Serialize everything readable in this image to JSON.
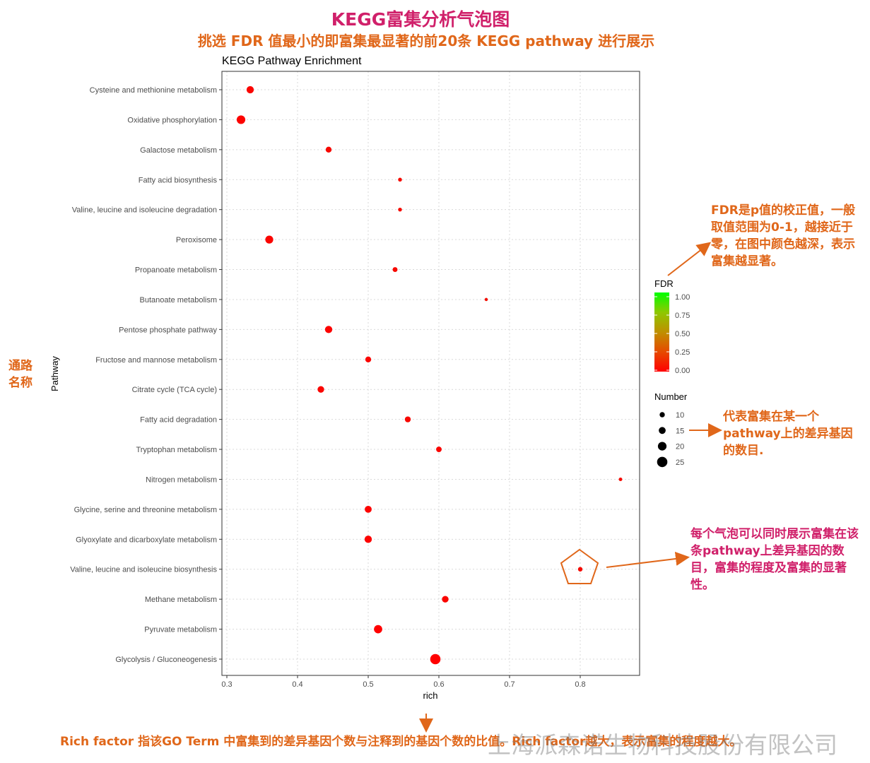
{
  "header": {
    "title": "KEGG富集分析气泡图",
    "subtitle": "挑选 FDR 值最小的即富集最显著的前20条 KEGG pathway 进行展示"
  },
  "annotations": {
    "fdr_note": "FDR是p值的校正值，一般取值范围为0-1，越接近于零，在图中颜色越深，表示富集越显著。",
    "number_note": "代表富集在某一个pathway上的差异基因的数目.",
    "bubble_note": "每个气泡可以同时展示富集在该条pathway上差异基因的数目，富集的程度及富集的显著性。",
    "pathway_note": "通路名称",
    "rich_note": "Rich factor 指该GO Term 中富集到的差异基因个数与注释到的基因个数的比值。Rich factor越大，表示富集的程度越大。",
    "watermark": "上海派森诺生物科技股份有限公司"
  },
  "colors": {
    "title": "#d0206a",
    "annotation": "#e0671a",
    "fdr_low": "#ff0000",
    "fdr_high": "#00ff00"
  },
  "chart_data": {
    "type": "scatter",
    "title": "KEGG Pathway Enrichment",
    "xlabel": "rich",
    "ylabel": "Pathway",
    "xlim": [
      0.3,
      0.88
    ],
    "xticks": [
      "0.3",
      "0.4",
      "0.5",
      "0.6",
      "0.7",
      "0.8"
    ],
    "grid": true,
    "legend_placement": "right",
    "color_legend": {
      "title": "FDR",
      "ticks": [
        "1.00",
        "0.75",
        "0.50",
        "0.25",
        "0.00"
      ]
    },
    "size_legend": {
      "title": "Number",
      "values": [
        10,
        15,
        20,
        25
      ],
      "labels": [
        "10",
        "15",
        "20",
        "25"
      ]
    },
    "points": [
      {
        "pathway": "Cysteine and methionine metabolism",
        "rich": 0.333,
        "number": 16,
        "fdr": 0.02
      },
      {
        "pathway": "Oxidative phosphorylation",
        "rich": 0.32,
        "number": 20,
        "fdr": 0.01
      },
      {
        "pathway": "Galactose metabolism",
        "rich": 0.444,
        "number": 12,
        "fdr": 0.03
      },
      {
        "pathway": "Fatty acid biosynthesis",
        "rich": 0.545,
        "number": 6,
        "fdr": 0.04
      },
      {
        "pathway": "Valine, leucine and isoleucine degradation",
        "rich": 0.545,
        "number": 6,
        "fdr": 0.04
      },
      {
        "pathway": "Peroxisome",
        "rich": 0.36,
        "number": 18,
        "fdr": 0.02
      },
      {
        "pathway": "Propanoate metabolism",
        "rich": 0.538,
        "number": 9,
        "fdr": 0.03
      },
      {
        "pathway": "Butanoate metabolism",
        "rich": 0.667,
        "number": 4,
        "fdr": 0.05
      },
      {
        "pathway": "Pentose phosphate pathway",
        "rich": 0.444,
        "number": 16,
        "fdr": 0.01
      },
      {
        "pathway": "Fructose and mannose metabolism",
        "rich": 0.5,
        "number": 12,
        "fdr": 0.02
      },
      {
        "pathway": "Citrate cycle (TCA cycle)",
        "rich": 0.433,
        "number": 14,
        "fdr": 0.02
      },
      {
        "pathway": "Fatty acid degradation",
        "rich": 0.556,
        "number": 12,
        "fdr": 0.03
      },
      {
        "pathway": "Tryptophan metabolism",
        "rich": 0.6,
        "number": 11,
        "fdr": 0.02
      },
      {
        "pathway": "Nitrogen metabolism",
        "rich": 0.857,
        "number": 5,
        "fdr": 0.04
      },
      {
        "pathway": "Glycine, serine and threonine metabolism",
        "rich": 0.5,
        "number": 15,
        "fdr": 0.01
      },
      {
        "pathway": "Glyoxylate and dicarboxylate metabolism",
        "rich": 0.5,
        "number": 16,
        "fdr": 0.01
      },
      {
        "pathway": "Valine, leucine and isoleucine biosynthesis",
        "rich": 0.8,
        "number": 8,
        "fdr": 0.04
      },
      {
        "pathway": "Methane metabolism",
        "rich": 0.609,
        "number": 14,
        "fdr": 0.02
      },
      {
        "pathway": "Pyruvate metabolism",
        "rich": 0.514,
        "number": 19,
        "fdr": 0.0
      },
      {
        "pathway": "Glycolysis / Gluconeogenesis",
        "rich": 0.595,
        "number": 25,
        "fdr": 0.0
      }
    ]
  }
}
